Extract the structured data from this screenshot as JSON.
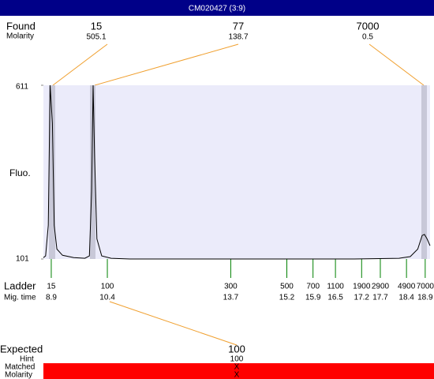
{
  "header": {
    "title": "CM020427 (3:9)"
  },
  "found": {
    "label": "Found",
    "sub_label": "Molarity",
    "peaks": [
      {
        "size": "15",
        "molarity": "505.1"
      },
      {
        "size": "77",
        "molarity": "138.7"
      },
      {
        "size": "7000",
        "molarity": "0.5"
      }
    ]
  },
  "chart_data": {
    "type": "line",
    "y_label": "Fluo.",
    "color": "#000000",
    "x": [
      8.69,
      8.75,
      8.82,
      8.87,
      8.93,
      8.98,
      9.05,
      9.2,
      9.5,
      9.8,
      9.92,
      9.98,
      10.02,
      10.06,
      10.12,
      10.25,
      10.5,
      11,
      14,
      17,
      18.2,
      18.5,
      18.7,
      18.82,
      18.88,
      18.95,
      19.03
    ],
    "values": [
      105,
      110,
      200,
      611,
      500,
      200,
      130,
      112,
      105,
      103,
      110,
      300,
      611,
      400,
      160,
      110,
      103,
      101,
      101,
      101,
      103,
      108,
      130,
      170,
      173,
      160,
      140
    ],
    "xlim": [
      8.69,
      19.03
    ],
    "ylim": [
      101,
      611
    ],
    "yticks": [
      101,
      611
    ]
  },
  "ladder": {
    "label": "Ladder",
    "sub_label": "Mig. time",
    "sizes": [
      "15",
      "100",
      "300",
      "500",
      "700",
      "1100",
      "1900",
      "2900",
      "4900",
      "7000"
    ],
    "mig_times": [
      8.9,
      10.4,
      13.7,
      15.2,
      15.9,
      16.5,
      17.2,
      17.7,
      18.4,
      18.9
    ]
  },
  "expected": {
    "label": "Expected",
    "value": "100",
    "hint_label": "Hint",
    "hint": "100",
    "matched_label": "Matched",
    "matched": "X",
    "molarity_label": "Molarity",
    "molarity": "X"
  }
}
